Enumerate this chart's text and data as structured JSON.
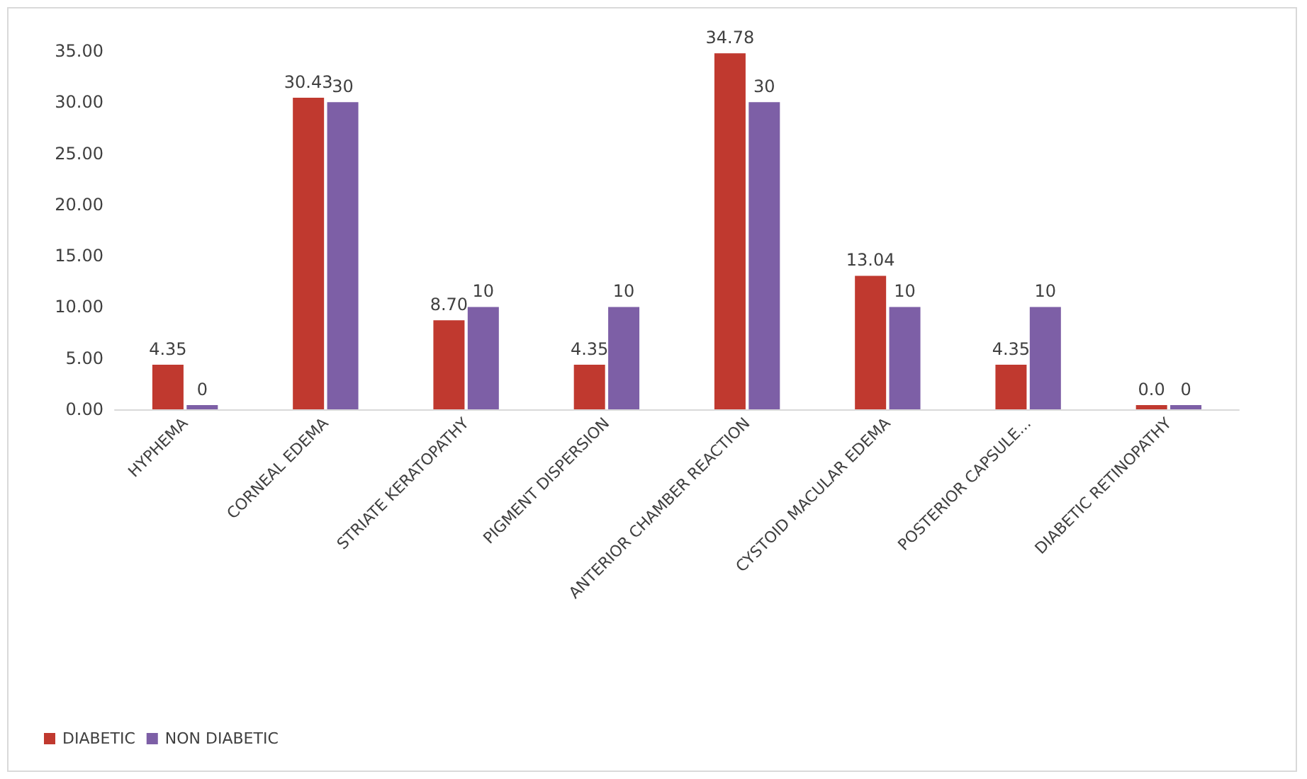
{
  "chart_data": {
    "type": "bar",
    "categories": [
      "HYPHEMA",
      "CORNEAL EDEMA",
      "STRIATE KERATOPATHY",
      "PIGMENT DISPERSION",
      "ANTERIOR CHAMBER REACTION",
      "CYSTOID MACULAR EDEMA",
      "POSTERIOR CAPSULE...",
      "DIABETIC RETINOPATHY"
    ],
    "series": [
      {
        "name": "DIABETIC",
        "color": "#c0392f",
        "values": [
          4.35,
          30.43,
          8.7,
          4.35,
          34.78,
          13.04,
          4.35,
          0
        ],
        "value_labels": [
          "4.35",
          "30.43",
          "8.70",
          "4.35",
          "34.78",
          "13.04",
          "4.35",
          "0.0"
        ]
      },
      {
        "name": "NON DIABETIC",
        "color": "#7d5fa6",
        "values": [
          0,
          30,
          10,
          10,
          30,
          10,
          10,
          0
        ],
        "value_labels": [
          "0",
          "30",
          "10",
          "10",
          "30",
          "10",
          "10",
          "0"
        ]
      }
    ],
    "ylim": [
      0,
      35
    ],
    "yticks": [
      {
        "value": 0,
        "label": "0.00"
      },
      {
        "value": 5,
        "label": "5.00"
      },
      {
        "value": 10,
        "label": "10.00"
      },
      {
        "value": 15,
        "label": "15.00"
      },
      {
        "value": 20,
        "label": "20.00"
      },
      {
        "value": 25,
        "label": "25.00"
      },
      {
        "value": 30,
        "label": "30.00"
      },
      {
        "value": 35,
        "label": "35.00"
      }
    ],
    "grid": false,
    "legend": "bottom left"
  }
}
